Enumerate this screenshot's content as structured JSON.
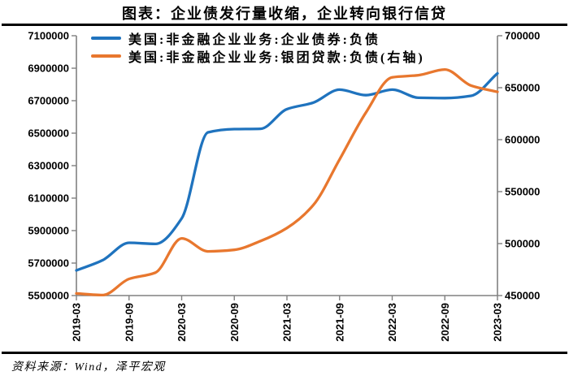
{
  "title": "图表：企业债发行量收缩，企业转向银行信贷",
  "source": "资料来源：Wind，泽平宏观",
  "colors": {
    "bond_blue": "#1F73BE",
    "loan_orange": "#E8772E",
    "axis_gray": "#808080",
    "text_black": "#000000"
  },
  "chart_data": {
    "type": "line",
    "x": [
      "2019-03",
      "2019-06",
      "2019-09",
      "2019-12",
      "2020-03",
      "2020-06",
      "2020-09",
      "2020-12",
      "2021-03",
      "2021-06",
      "2021-09",
      "2021-12",
      "2022-03",
      "2022-06",
      "2022-09",
      "2022-12",
      "2023-03"
    ],
    "x_tick_labels": [
      "2019-03",
      "2019-09",
      "2020-03",
      "2020-09",
      "2021-03",
      "2021-09",
      "2022-03",
      "2022-09",
      "2023-03"
    ],
    "series": [
      {
        "id": "corporate-bond-debt",
        "name": "美国:非金融企业业务:企业债券:负债",
        "axis": "left",
        "color": "#1F73BE",
        "values": [
          5655000,
          5718000,
          5825000,
          5818000,
          5975000,
          6505000,
          6525000,
          6527000,
          6648000,
          6688000,
          6768000,
          6734000,
          6768000,
          6718000,
          6716000,
          6730000,
          6868000
        ]
      },
      {
        "id": "syndicated-loan-debt",
        "name": "美国:非金融企业业务:银团贷款:负债(右轴)",
        "axis": "right",
        "color": "#E8772E",
        "values": [
          452000,
          450500,
          466000,
          472000,
          505000,
          492500,
          494000,
          502500,
          515000,
          537000,
          581000,
          626000,
          660000,
          662000,
          667500,
          652000,
          646000
        ]
      }
    ],
    "left_axis": {
      "min": 5500000,
      "max": 7100000,
      "step": 200000
    },
    "right_axis": {
      "min": 450000,
      "max": 700000,
      "step": 50000
    },
    "grid": false,
    "legend_position": "top-left"
  }
}
